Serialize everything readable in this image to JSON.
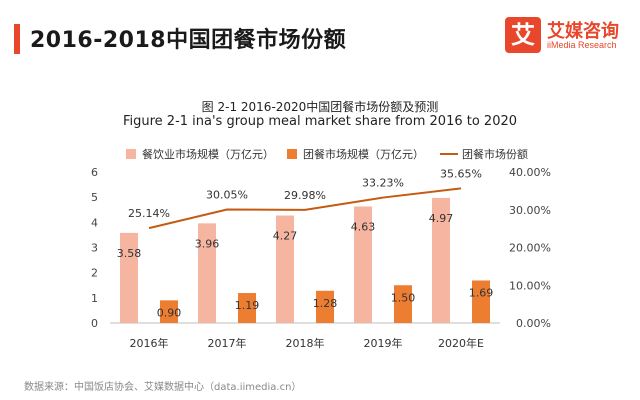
{
  "header": {
    "title": "2016-2018中国团餐市场份额",
    "accent_color": "#e8472c"
  },
  "logo": {
    "badge_char": "艾",
    "name": "艾媒咨询",
    "sub": "iiMedia Research",
    "color": "#e8472c"
  },
  "chart_data": {
    "type": "bar",
    "title": "图 2-1 2016-2020中国团餐市场份额及预测",
    "subtitle": "Figure 2-1 ina's group meal market share from 2016 to 2020",
    "categories": [
      "2016年",
      "2017年",
      "2018年",
      "2019年",
      "2020年E"
    ],
    "series": [
      {
        "name": "餐饮业市场规模（万亿元）",
        "kind": "bar",
        "axis": "left",
        "color": "#f5b5a1",
        "values": [
          3.58,
          3.96,
          4.27,
          4.63,
          4.97
        ],
        "labels": [
          "3.58",
          "3.96",
          "4.27",
          "4.63",
          "4.97"
        ]
      },
      {
        "name": "团餐市场规模（万亿元）",
        "kind": "bar",
        "axis": "left",
        "color": "#ec7d31",
        "values": [
          0.9,
          1.19,
          1.28,
          1.5,
          1.69
        ],
        "labels": [
          "0.90",
          "1.19",
          "1.28",
          "1.50",
          "1.69"
        ]
      },
      {
        "name": "团餐市场份额",
        "kind": "line",
        "axis": "right",
        "color": "#c55a11",
        "values": [
          25.14,
          30.05,
          29.98,
          33.23,
          35.65
        ],
        "labels": [
          "25.14%",
          "30.05%",
          "29.98%",
          "33.23%",
          "35.65%"
        ]
      }
    ],
    "ylim_left": [
      0,
      6
    ],
    "yticks_left": [
      "0",
      "1",
      "2",
      "3",
      "4",
      "5",
      "6"
    ],
    "ylim_right": [
      0,
      40
    ],
    "yticks_right": [
      "0.00%",
      "10.00%",
      "20.00%",
      "30.00%",
      "40.00%"
    ],
    "legend_position": "top",
    "grid": false
  },
  "footer": {
    "source": "数据来源：中国饭店协会、艾媒数据中心（data.iimedia.cn）"
  }
}
